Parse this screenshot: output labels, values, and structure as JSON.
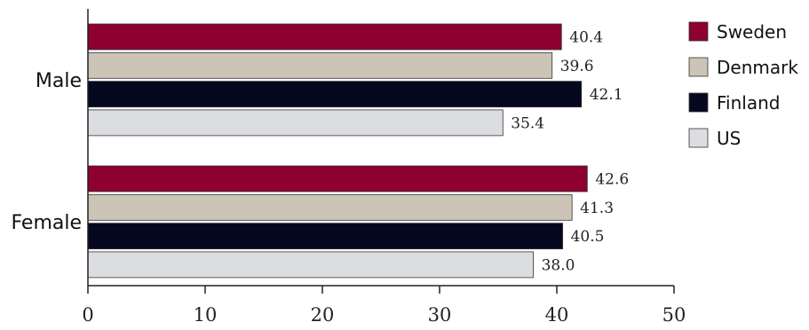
{
  "chart_data": {
    "type": "bar",
    "orientation": "horizontal",
    "title": "",
    "xlabel": "",
    "ylabel": "",
    "categories": [
      "Male",
      "Female"
    ],
    "series": [
      {
        "name": "Sweden",
        "color": "#8e0030",
        "values": [
          40.4,
          42.6
        ],
        "labels": [
          "40.4",
          "42.6"
        ]
      },
      {
        "name": "Denmark",
        "color": "#cdc4b8",
        "values": [
          39.6,
          41.3
        ],
        "labels": [
          "39.6",
          "41.3"
        ]
      },
      {
        "name": "Finland",
        "color": "#060820",
        "values": [
          42.1,
          40.5
        ],
        "labels": [
          "42.1",
          "40.5"
        ]
      },
      {
        "name": "US",
        "color": "#dcdde0",
        "values": [
          35.4,
          38.0
        ],
        "labels": [
          "35.4",
          "38.0"
        ]
      }
    ],
    "xlim": [
      0,
      50
    ],
    "xticks": [
      "0",
      "10",
      "20",
      "30",
      "40",
      "50"
    ],
    "grid": false,
    "legend_position": "right"
  }
}
